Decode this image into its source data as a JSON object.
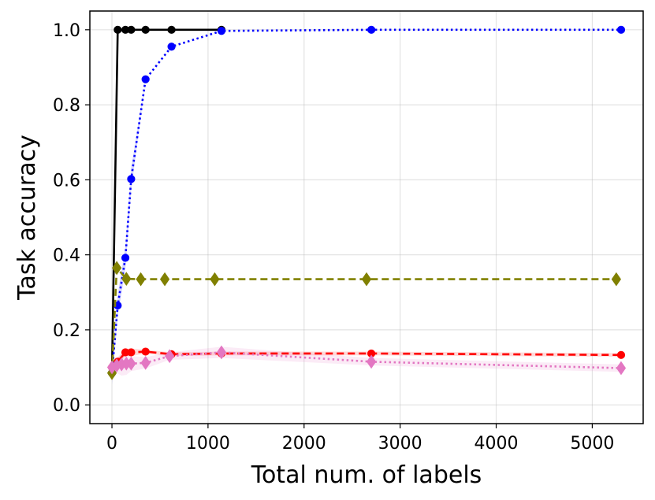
{
  "chart_data": {
    "type": "line",
    "title": "",
    "xlabel": "Total num. of labels",
    "ylabel": "Task accuracy",
    "xlim": [
      -230,
      5530
    ],
    "ylim": [
      -0.05,
      1.05
    ],
    "xticks": [
      0,
      1000,
      2000,
      3000,
      4000,
      5000
    ],
    "yticks": [
      0.0,
      0.2,
      0.4,
      0.6,
      0.8,
      1.0
    ],
    "xtick_labels": [
      "0",
      "1000",
      "2000",
      "3000",
      "4000",
      "5000"
    ],
    "ytick_labels": [
      "0.0",
      "0.2",
      "0.4",
      "0.6",
      "0.8",
      "1.0"
    ],
    "grid": true,
    "legend": false,
    "series": [
      {
        "color": "#000000",
        "line_style": "solid",
        "marker": "circle",
        "x": [
          0,
          60,
          140,
          200,
          350,
          620,
          1140
        ],
        "y": [
          0.085,
          1.0,
          1.0,
          1.0,
          1.0,
          1.0,
          1.0
        ]
      },
      {
        "color": "#0000ff",
        "line_style": "dotted",
        "marker": "circle",
        "x": [
          0,
          60,
          140,
          200,
          350,
          620,
          1140,
          2700,
          5300
        ],
        "y": [
          0.085,
          0.265,
          0.392,
          0.602,
          0.868,
          0.955,
          0.997,
          1.0,
          1.0
        ],
        "band": [
          0.03,
          0.03,
          0.03,
          0.03,
          0.0,
          0.0,
          0.0,
          0.0,
          0.0
        ]
      },
      {
        "color": "#808000",
        "line_style": "dashed",
        "marker": "diamond",
        "x": [
          0,
          50,
          150,
          300,
          550,
          1070,
          2650,
          5250
        ],
        "y": [
          0.085,
          0.365,
          0.336,
          0.335,
          0.335,
          0.335,
          0.335,
          0.335
        ]
      },
      {
        "color": "#ff0000",
        "line_style": "dashed",
        "marker": "circle",
        "x": [
          0,
          60,
          140,
          200,
          350,
          620,
          1140,
          2700,
          5300
        ],
        "y": [
          0.1,
          0.115,
          0.14,
          0.14,
          0.142,
          0.135,
          0.137,
          0.137,
          0.133
        ],
        "band": [
          0.01,
          0.01,
          0.01,
          0.01,
          0.005,
          0.005,
          0.005,
          0.005,
          0.005
        ]
      },
      {
        "color": "#e377c2",
        "line_style": "dotted",
        "marker": "diamond",
        "x": [
          0,
          50,
          100,
          150,
          200,
          350,
          600,
          1140,
          2700,
          5300
        ],
        "y": [
          0.1,
          0.105,
          0.108,
          0.11,
          0.11,
          0.112,
          0.13,
          0.14,
          0.115,
          0.098
        ],
        "band": [
          0.01,
          0.02,
          0.03,
          0.03,
          0.02,
          0.015,
          0.01,
          0.015,
          0.01,
          0.01
        ]
      }
    ]
  }
}
